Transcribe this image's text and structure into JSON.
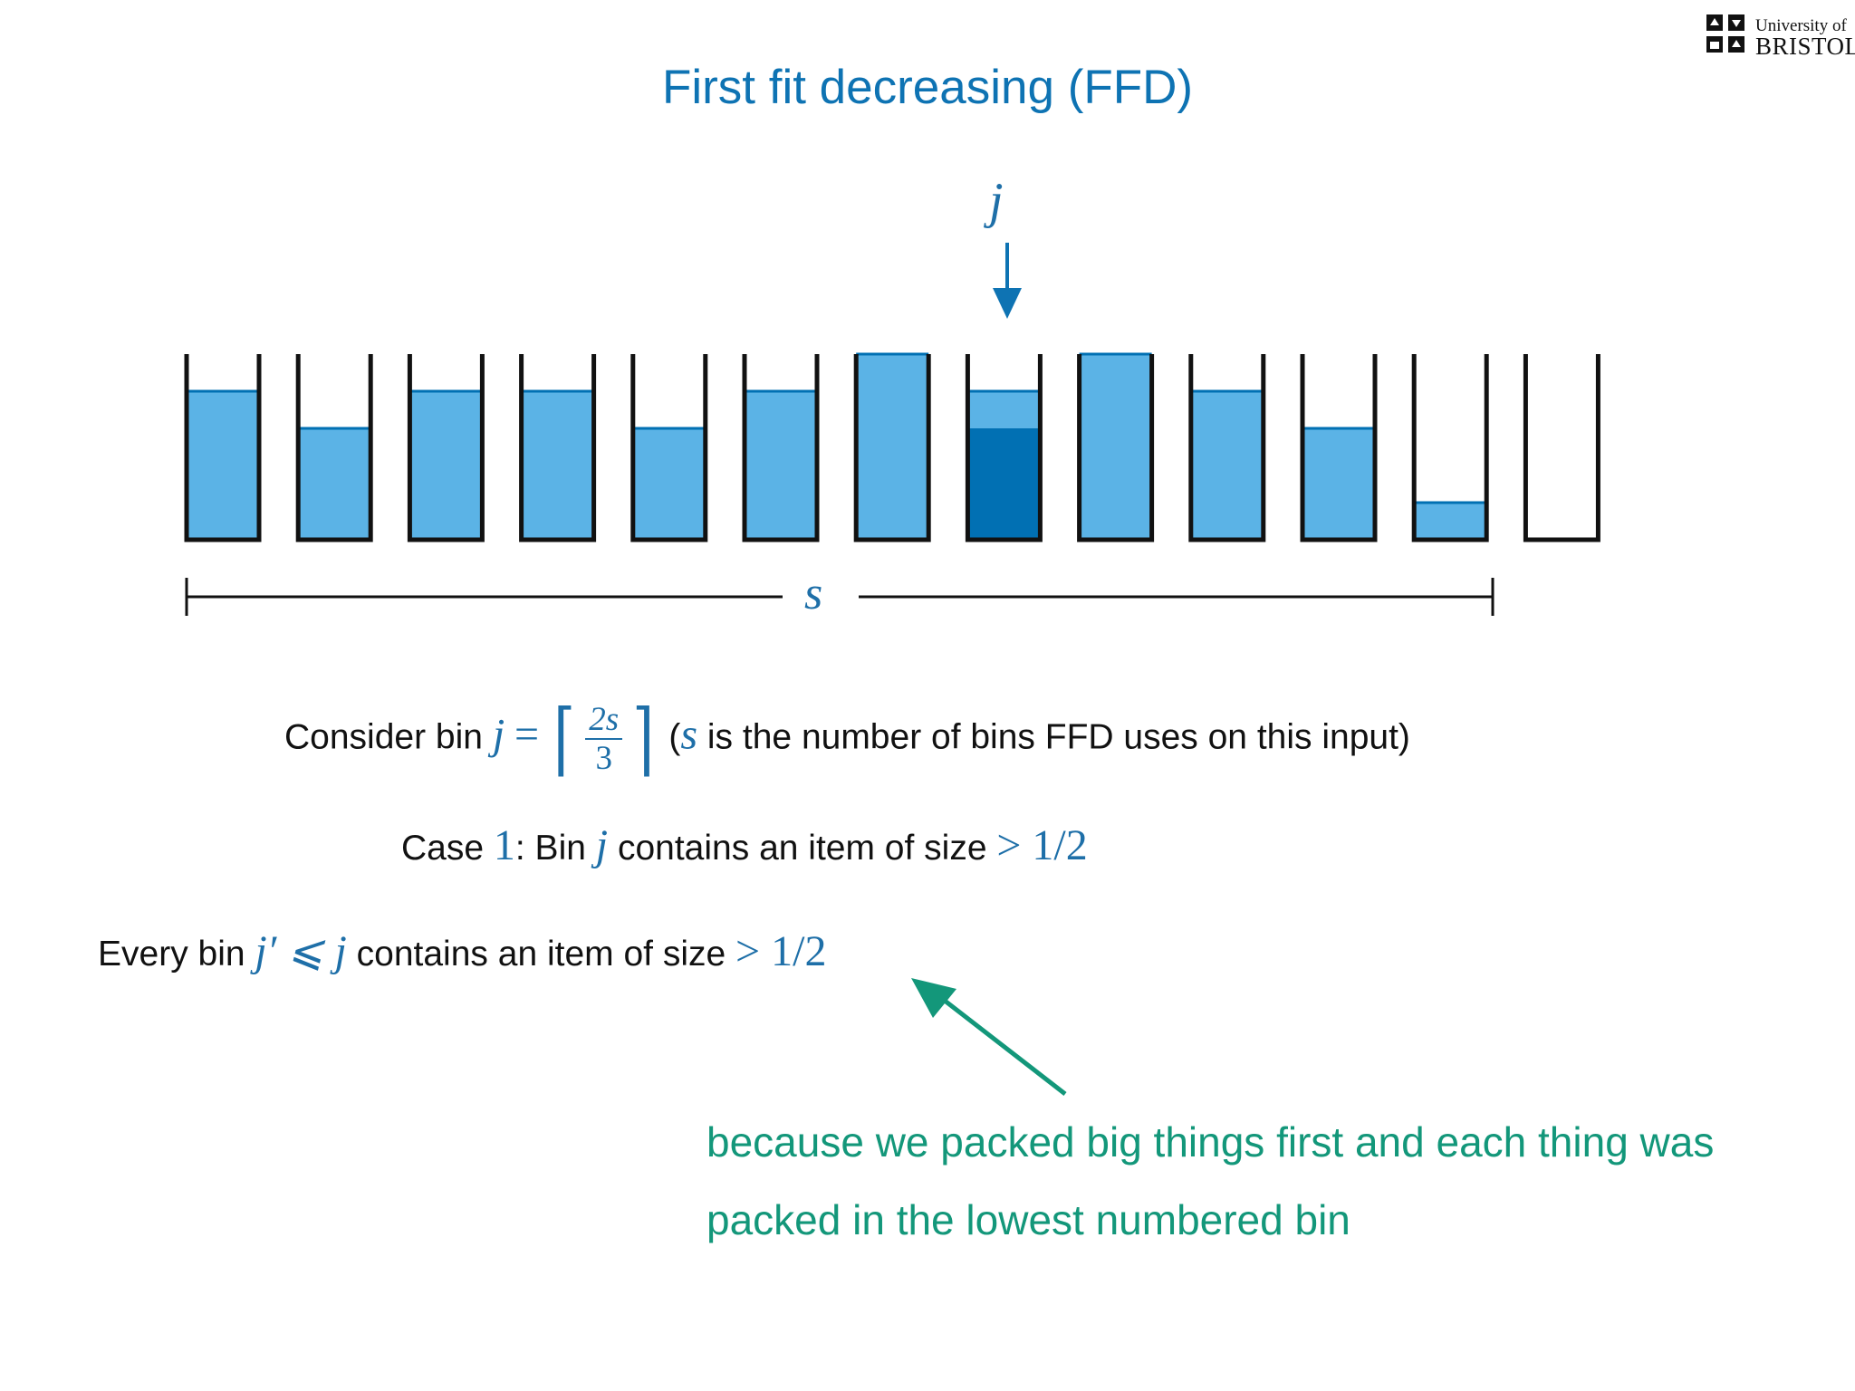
{
  "slide_title": "First fit decreasing (FFD)",
  "logo": {
    "line1": "University of",
    "line2": "BRISTOL"
  },
  "bin_marker_label": "j",
  "span_label": "s",
  "bins": [
    {
      "light_fill": 0.8,
      "dark_fill": 0
    },
    {
      "light_fill": 0.6,
      "dark_fill": 0
    },
    {
      "light_fill": 0.8,
      "dark_fill": 0
    },
    {
      "light_fill": 0.8,
      "dark_fill": 0
    },
    {
      "light_fill": 0.6,
      "dark_fill": 0
    },
    {
      "light_fill": 0.8,
      "dark_fill": 0
    },
    {
      "light_fill": 1.0,
      "dark_fill": 0
    },
    {
      "light_fill": 0.8,
      "dark_fill": 0.6
    },
    {
      "light_fill": 1.0,
      "dark_fill": 0
    },
    {
      "light_fill": 0.8,
      "dark_fill": 0
    },
    {
      "light_fill": 0.6,
      "dark_fill": 0
    },
    {
      "light_fill": 0.2,
      "dark_fill": 0
    },
    {
      "light_fill": 0,
      "dark_fill": 0
    }
  ],
  "colors": {
    "title": "#0e73b3",
    "light_item": "#5bb3e6",
    "dark_item": "#0170b3",
    "arrow": "#0e73b3",
    "annotation": "#13977a"
  },
  "consider_line": {
    "prefix": "Consider bin",
    "var_j": "j",
    "equals": "=",
    "frac_num": "2s",
    "frac_den": "3",
    "open_paren": "(",
    "var_s": "s",
    "suffix": "is the number of bins FFD uses on this input)"
  },
  "case_line": {
    "case_word": "Case",
    "case_num": "1",
    "mid": ": Bin",
    "var_j": "j",
    "text": "contains an item of size",
    "bound": "> 1/2"
  },
  "every_line": {
    "prefix": "Every bin",
    "ineq": "j′ ⩽ j",
    "text": "contains an item of size",
    "bound": "> 1/2"
  },
  "annotation": {
    "line1": "because we packed big things first and each thing was",
    "line2": "packed in the lowest numbered bin"
  }
}
